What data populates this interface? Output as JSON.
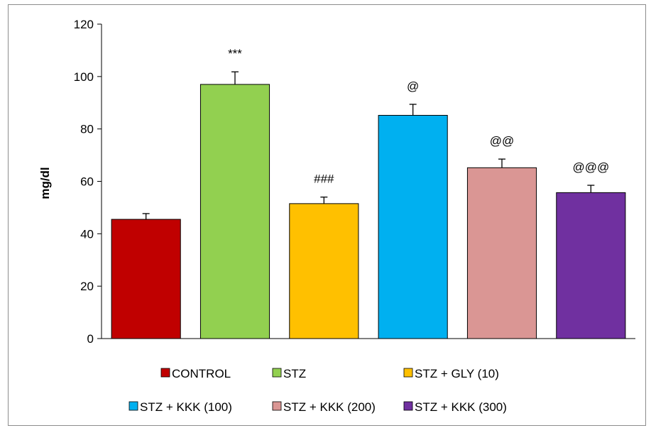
{
  "chart_data": {
    "type": "bar",
    "title": "",
    "xlabel": "",
    "ylabel": "mg/dl",
    "ylim": [
      0,
      120
    ],
    "yticks": [
      0,
      20,
      40,
      60,
      80,
      100,
      120
    ],
    "grid": false,
    "legend_position": "bottom",
    "categories": [
      "CONTROL",
      "STZ",
      "STZ + GLY (10)",
      "STZ + KKK (100)",
      "STZ + KKK (200)",
      "STZ + KKK (300)"
    ],
    "values": [
      45.5,
      97,
      51.5,
      85.2,
      65.2,
      55.7
    ],
    "errors": [
      2.2,
      4.8,
      2.5,
      4.2,
      3.3,
      2.8
    ],
    "annotations": [
      "",
      "***",
      "###",
      "@",
      "@@",
      "@@@"
    ],
    "colors": [
      "#c00000",
      "#92d050",
      "#ffc000",
      "#00b0f0",
      "#da9694",
      "#7030a0"
    ]
  }
}
